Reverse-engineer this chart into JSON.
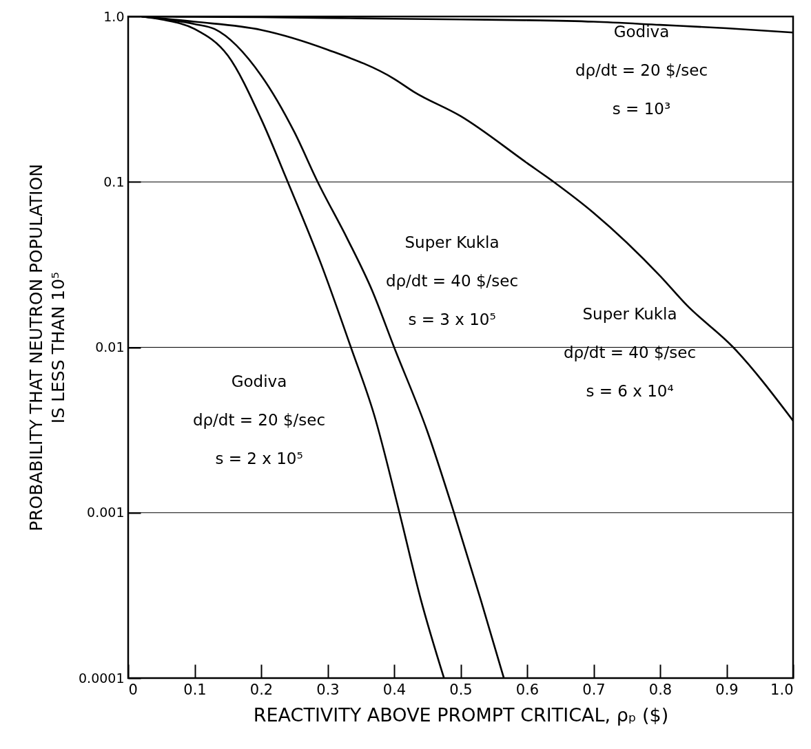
{
  "chart_data": {
    "type": "line",
    "xlabel": "REACTIVITY ABOVE PROMPT CRITICAL, ρₚ ($)",
    "ylabel": "PROBABILITY THAT NEUTRON POPULATION\nIS LESS THAN 10⁵",
    "log": true,
    "grid": "y",
    "marker": "none",
    "line_style": "solid",
    "xlim": [
      0,
      1
    ],
    "ylim": [
      0.0001,
      1
    ],
    "xticks": [
      0,
      0.1,
      0.2,
      0.3,
      0.4,
      0.5,
      0.6,
      0.7,
      0.8,
      0.9,
      {
        "value": 1,
        "label": "1.0"
      }
    ],
    "yticks": [
      0.0001,
      0.001,
      0.01,
      0.1,
      {
        "value": 1,
        "label": "1.0"
      }
    ],
    "series": [
      {
        "color": "#000000",
        "x": [
          0.02,
          0.1,
          0.2,
          0.3,
          0.4,
          0.5,
          0.6,
          0.7,
          0.8,
          0.9,
          1.0
        ],
        "values": [
          1,
          0.995,
          0.99,
          0.98,
          0.97,
          0.96,
          0.95,
          0.93,
          0.89,
          0.85,
          0.8
        ]
      },
      {
        "color": "#000000",
        "x": [
          0.02,
          0.1,
          0.2,
          0.3,
          0.4,
          0.43,
          0.5,
          0.6,
          0.64,
          0.7,
          0.8,
          0.84,
          0.91,
          1.0
        ],
        "values": [
          1,
          0.93,
          0.83,
          0.63,
          0.42,
          0.35,
          0.25,
          0.13,
          0.1,
          0.065,
          0.027,
          0.018,
          0.01,
          0.0036
        ]
      },
      {
        "color": "#000000",
        "x": [
          0.02,
          0.05,
          0.1,
          0.13,
          0.2,
          0.25,
          0.285,
          0.33,
          0.367,
          0.4,
          0.45,
          0.49,
          0.53,
          0.565
        ],
        "values": [
          1,
          0.97,
          0.9,
          0.84,
          0.44,
          0.2,
          0.1,
          0.045,
          0.022,
          0.01,
          0.0031,
          0.001,
          0.0003,
          0.0001
        ]
      },
      {
        "color": "#000000",
        "x": [
          0.02,
          0.05,
          0.1,
          0.15,
          0.2,
          0.24,
          0.29,
          0.335,
          0.37,
          0.408,
          0.44,
          0.475
        ],
        "values": [
          1,
          0.96,
          0.84,
          0.58,
          0.24,
          0.1,
          0.032,
          0.01,
          0.0039,
          0.001,
          0.0003,
          0.0001
        ]
      }
    ],
    "annotations": [
      "Godiva\ndρ/dt = 20 $/sec\ns = 10³",
      "Super Kukla\ndρ/dt = 40 $/sec\ns = 3 x 10⁵",
      "Super Kukla\ndρ/dt = 40 $/sec\ns = 6 x 10⁴",
      "Godiva\ndρ/dt = 20 $/sec\ns = 2 x 10⁵"
    ]
  }
}
